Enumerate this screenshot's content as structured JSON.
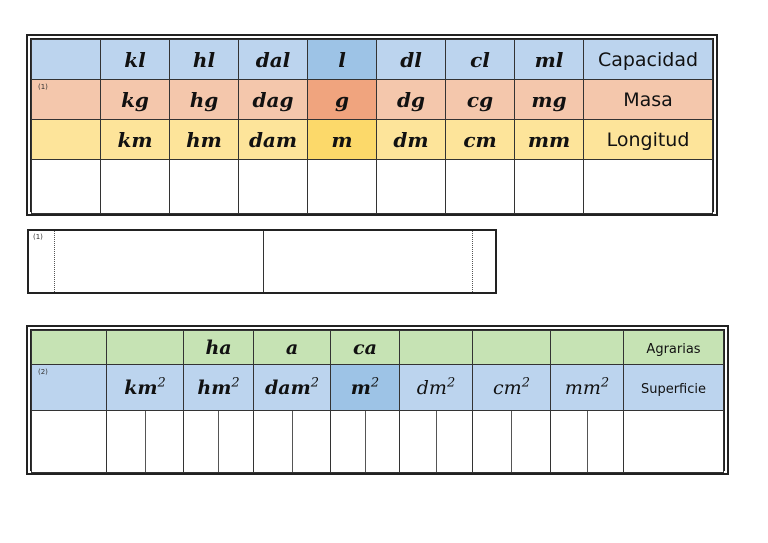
{
  "notes": {
    "n1": "(1)",
    "n2": "(2)"
  },
  "table1": {
    "capacidad": {
      "units": [
        "kl",
        "hl",
        "dal",
        "l",
        "dl",
        "cl",
        "ml"
      ],
      "label": "Capacidad"
    },
    "masa": {
      "units": [
        "kg",
        "hg",
        "dag",
        "g",
        "dg",
        "cg",
        "mg"
      ],
      "label": "Masa"
    },
    "longitud": {
      "units": [
        "km",
        "hm",
        "dam",
        "m",
        "dm",
        "cm",
        "mm"
      ],
      "label": "Longitud"
    }
  },
  "table2": {
    "agrarias": {
      "units": [
        "",
        "ha",
        "a",
        "ca",
        "",
        "",
        ""
      ],
      "label": "Agrarias"
    },
    "superficie": {
      "units": [
        "km",
        "hm",
        "dam",
        "m",
        "dm",
        "cm",
        "mm"
      ],
      "exponent": "2",
      "label": "Superficie"
    }
  },
  "colors": {
    "blue": "#bcd4ee",
    "orange": "#f4c7ac",
    "yellow": "#fde49a",
    "green": "#c6e3b4"
  }
}
